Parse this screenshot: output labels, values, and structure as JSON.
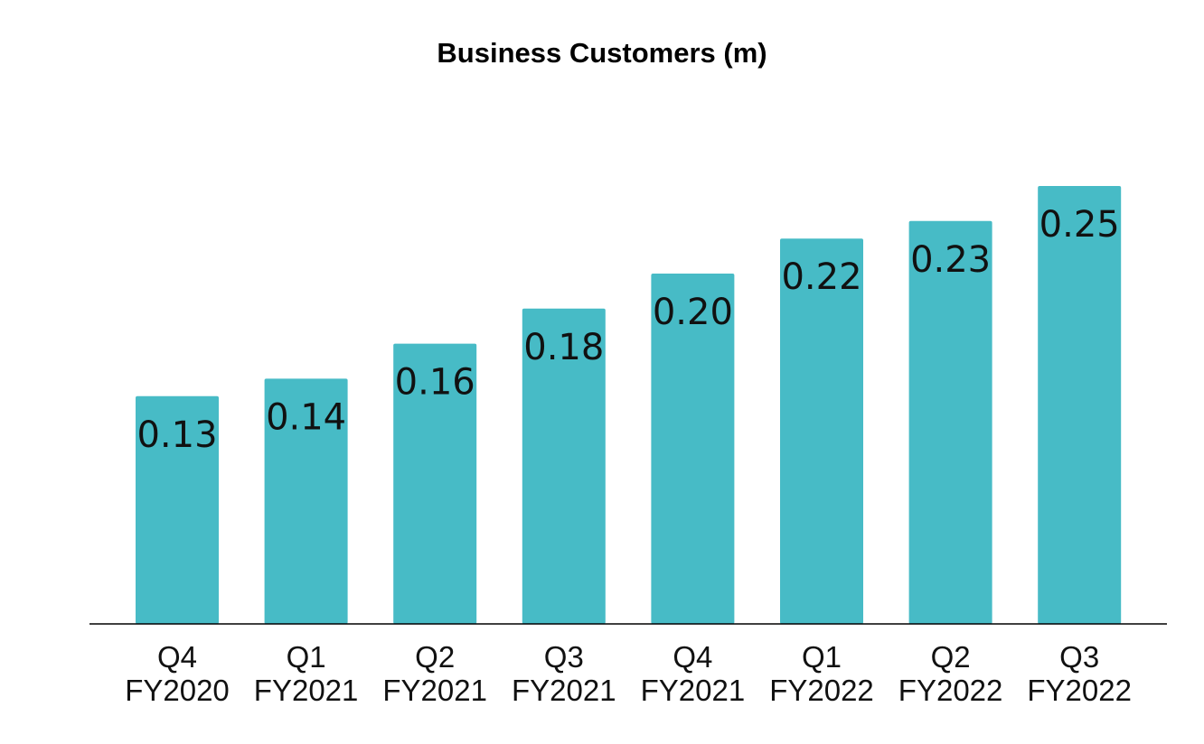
{
  "chart_data": {
    "type": "bar",
    "title": "Business Customers (m)",
    "categories": [
      [
        "Q4",
        "FY2020"
      ],
      [
        "Q1",
        "FY2021"
      ],
      [
        "Q2",
        "FY2021"
      ],
      [
        "Q3",
        "FY2021"
      ],
      [
        "Q4",
        "FY2021"
      ],
      [
        "Q1",
        "FY2022"
      ],
      [
        "Q2",
        "FY2022"
      ],
      [
        "Q3",
        "FY2022"
      ]
    ],
    "values": [
      0.13,
      0.14,
      0.16,
      0.18,
      0.2,
      0.22,
      0.23,
      0.25
    ],
    "value_labels": [
      "0.13",
      "0.14",
      "0.16",
      "0.18",
      "0.20",
      "0.22",
      "0.23",
      "0.25"
    ],
    "xlabel": "",
    "ylabel": "",
    "ylim": [
      0,
      0.28
    ],
    "grid": false,
    "legend": "none",
    "bar_color": "#47BBC6",
    "axis_color": "#000000"
  }
}
